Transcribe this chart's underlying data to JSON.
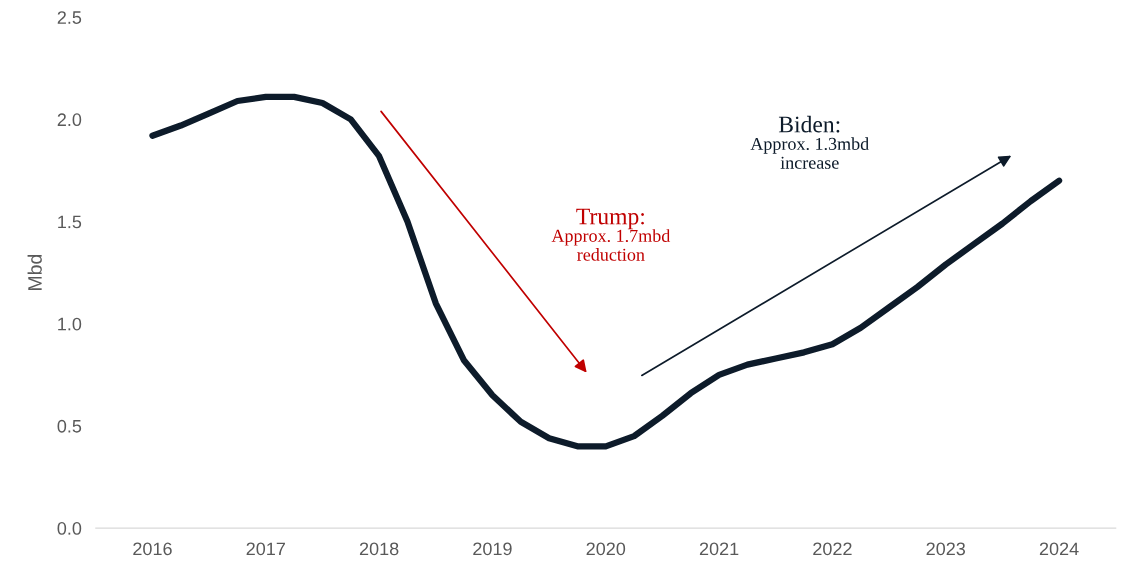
{
  "chart_data": {
    "type": "line",
    "ylabel": "Mbd",
    "x": [
      2016,
      2016.25,
      2016.5,
      2016.75,
      2017,
      2017.25,
      2017.5,
      2017.75,
      2018,
      2018.25,
      2018.5,
      2018.75,
      2019,
      2019.25,
      2019.5,
      2019.75,
      2020,
      2020.25,
      2020.5,
      2020.75,
      2021,
      2021.25,
      2021.5,
      2021.75,
      2022,
      2022.25,
      2022.5,
      2022.75,
      2023,
      2023.25,
      2023.5,
      2023.75,
      2024
    ],
    "series": [
      {
        "color": "#0d1b2a",
        "values": [
          1.92,
          1.97,
          2.03,
          2.09,
          2.11,
          2.11,
          2.08,
          2.0,
          1.82,
          1.5,
          1.1,
          0.82,
          0.65,
          0.52,
          0.44,
          0.4,
          0.4,
          0.45,
          0.55,
          0.66,
          0.75,
          0.8,
          0.83,
          0.86,
          0.9,
          0.98,
          1.08,
          1.18,
          1.29,
          1.39,
          1.49,
          1.6,
          1.7
        ]
      }
    ],
    "xlim": [
      2015.5,
      2024.5
    ],
    "xticks": [
      2016,
      2017,
      2018,
      2019,
      2020,
      2021,
      2022,
      2023,
      2024
    ],
    "ylim": [
      0,
      2.5
    ],
    "yticks": [
      {
        "value": 0,
        "label": "0.0"
      },
      0.5,
      {
        "value": 1,
        "label": "1.0"
      },
      1.5,
      {
        "value": 2,
        "label": "2.0"
      },
      2.5
    ],
    "annotations": [
      "Trump:\nApprox. 1.7mbd\nreduction",
      "Biden:\nApprox. 1.3mbd\nincrease"
    ],
    "grid": false,
    "legend": false,
    "marker": "none",
    "line_style": "solid"
  }
}
